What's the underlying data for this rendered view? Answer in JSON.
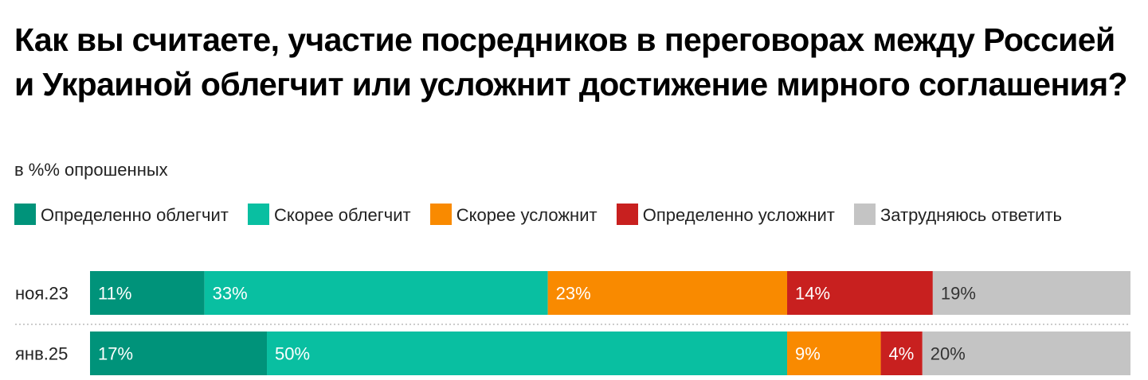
{
  "title": "Как вы считаете, участие посредников в переговорах между Россией и Украиной облегчит или усложнит достижение мирного соглашения?",
  "subtitle": "в %% опрошенных",
  "chart_data": {
    "type": "bar",
    "orientation": "horizontal",
    "stacked": true,
    "normalized_to": 100,
    "title": "Как вы считаете, участие посредников в переговорах между Россией и Украиной облегчит или усложнит достижение мирного соглашения?",
    "subtitle": "в %% опрошенных",
    "categories": [
      "ноя.23",
      "янв.25"
    ],
    "series": [
      {
        "name": "Определенно облегчит",
        "color": "#00937a",
        "values": [
          11,
          17
        ],
        "labels": [
          "11%",
          "17%"
        ]
      },
      {
        "name": "Скорее облегчит",
        "color": "#09bfa1",
        "values": [
          33,
          50
        ],
        "labels": [
          "33%",
          "50%"
        ]
      },
      {
        "name": "Скорее усложнит",
        "color": "#f98a00",
        "values": [
          23,
          9
        ],
        "labels": [
          "23%",
          "9%"
        ]
      },
      {
        "name": "Определенно усложнит",
        "color": "#c8201f",
        "values": [
          14,
          4
        ],
        "labels": [
          "14%",
          "4%"
        ]
      },
      {
        "name": "Затрудняюсь ответить",
        "color": "#c4c4c4",
        "values": [
          19,
          20
        ],
        "labels": [
          "19%",
          "20%"
        ]
      }
    ],
    "legend_position": "top",
    "grid": false,
    "row_separator": "dotted"
  }
}
